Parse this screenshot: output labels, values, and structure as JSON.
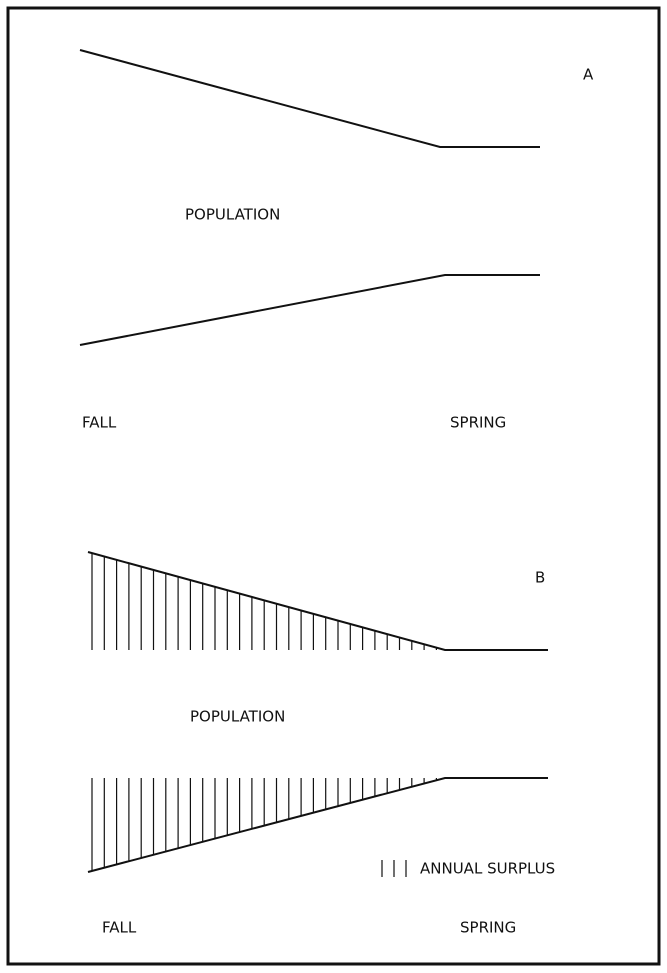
{
  "panels": [
    {
      "label": "A",
      "y_label": "POPULATION",
      "x_start": "FALL",
      "x_end": "SPRING"
    },
    {
      "label": "B",
      "y_label": "POPULATION",
      "x_start": "FALL",
      "x_end": "SPRING",
      "legend": "ANNUAL SURPLUS"
    }
  ]
}
